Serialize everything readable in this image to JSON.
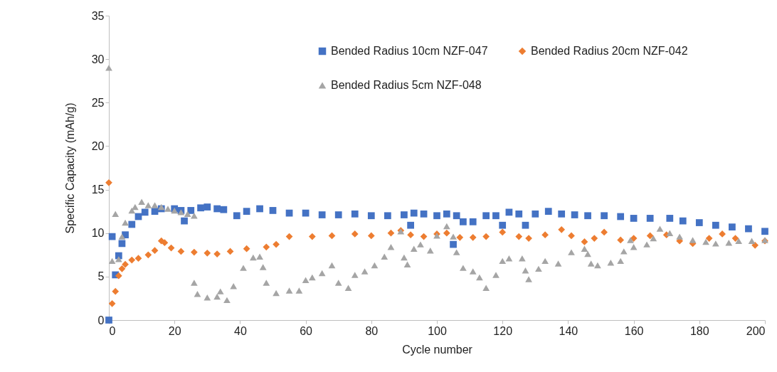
{
  "chart_data": {
    "type": "scatter",
    "xlabel": "Cycle number",
    "ylabel": "Specific Capacity (mAh/g)",
    "xlim": [
      0,
      200
    ],
    "xticks": [
      0,
      20,
      40,
      60,
      80,
      100,
      120,
      140,
      160,
      180,
      200
    ],
    "ylim": [
      0,
      35
    ],
    "yticks": [
      0,
      5,
      10,
      15,
      20,
      25,
      30,
      35
    ],
    "grid": false,
    "legend": "top right",
    "series": [
      {
        "name": "Bended Radius 10cm NZF-047",
        "color": "#4472c4",
        "marker": "square",
        "x": [
          0,
          1,
          2,
          3,
          4,
          5,
          7,
          9,
          11,
          14,
          16,
          20,
          22,
          23,
          25,
          28,
          30,
          33,
          35,
          39,
          42,
          46,
          50,
          55,
          60,
          65,
          70,
          75,
          80,
          85,
          90,
          92,
          93,
          96,
          100,
          103,
          105,
          106,
          108,
          111,
          115,
          118,
          120,
          122,
          125,
          127,
          130,
          134,
          138,
          142,
          146,
          151,
          156,
          160,
          165,
          171,
          175,
          180,
          185,
          190,
          195,
          200
        ],
        "values": [
          0,
          9.6,
          5.2,
          7.4,
          8.8,
          9.8,
          11.0,
          11.9,
          12.4,
          12.5,
          12.8,
          12.8,
          12.6,
          11.4,
          12.6,
          12.9,
          13.0,
          12.8,
          12.7,
          12.0,
          12.5,
          12.8,
          12.6,
          12.3,
          12.3,
          12.1,
          12.1,
          12.2,
          12.0,
          12.0,
          12.1,
          10.9,
          12.3,
          12.2,
          12.0,
          12.2,
          8.7,
          12.0,
          11.3,
          11.3,
          12.0,
          12.0,
          10.9,
          12.4,
          12.2,
          10.9,
          12.2,
          12.5,
          12.2,
          12.1,
          12.0,
          12.0,
          11.9,
          11.7,
          11.7,
          11.7,
          11.4,
          11.2,
          10.9,
          10.7,
          10.5,
          10.2
        ]
      },
      {
        "name": "Bended Radius 20cm NZF-042",
        "color": "#ed7d31",
        "marker": "diamond",
        "x": [
          0,
          1,
          2,
          3,
          4,
          5,
          7,
          9,
          12,
          14,
          16,
          17,
          19,
          22,
          26,
          30,
          33,
          37,
          42,
          48,
          51,
          55,
          62,
          68,
          75,
          80,
          86,
          89,
          92,
          96,
          100,
          103,
          107,
          111,
          115,
          120,
          125,
          128,
          133,
          138,
          141,
          145,
          148,
          151,
          156,
          160,
          165,
          170,
          174,
          178,
          183,
          187,
          191,
          197,
          200
        ],
        "values": [
          15.8,
          1.9,
          3.3,
          5.1,
          5.9,
          6.4,
          6.9,
          7.1,
          7.5,
          8.0,
          9.1,
          8.9,
          8.3,
          7.9,
          7.8,
          7.7,
          7.6,
          7.9,
          8.2,
          8.4,
          8.7,
          9.6,
          9.6,
          9.7,
          9.9,
          9.7,
          10.0,
          10.3,
          9.8,
          9.6,
          9.9,
          10.0,
          9.5,
          9.5,
          9.6,
          10.1,
          9.6,
          9.4,
          9.8,
          10.4,
          9.7,
          9.0,
          9.4,
          10.1,
          9.2,
          9.4,
          9.7,
          9.8,
          9.1,
          8.8,
          9.4,
          9.9,
          9.4,
          8.6,
          9.1
        ]
      },
      {
        "name": "Bended Radius 5cm NZF-048",
        "color": "#a5a5a5",
        "marker": "triangle",
        "x": [
          0,
          1,
          2,
          3,
          4,
          5,
          7,
          8,
          10,
          12,
          14,
          16,
          18,
          20,
          22,
          24,
          26,
          26,
          27,
          30,
          33,
          34,
          36,
          38,
          41,
          44,
          46,
          47,
          48,
          51,
          55,
          58,
          60,
          62,
          65,
          68,
          70,
          73,
          75,
          78,
          81,
          84,
          86,
          89,
          90,
          91,
          93,
          95,
          98,
          100,
          103,
          105,
          106,
          108,
          111,
          113,
          115,
          118,
          120,
          122,
          126,
          127,
          128,
          131,
          133,
          137,
          141,
          145,
          146,
          147,
          149,
          153,
          156,
          157,
          159,
          160,
          164,
          166,
          168,
          171,
          174,
          178,
          182,
          185,
          189,
          192,
          196,
          200
        ],
        "values": [
          29.0,
          6.8,
          12.2,
          7.0,
          9.6,
          11.2,
          12.6,
          13.0,
          13.6,
          13.2,
          13.2,
          13.0,
          12.8,
          12.6,
          12.4,
          12.2,
          12.0,
          4.3,
          3.0,
          2.6,
          2.7,
          3.3,
          2.3,
          3.9,
          6.0,
          7.2,
          7.3,
          6.1,
          4.3,
          3.1,
          3.4,
          3.4,
          4.6,
          4.9,
          5.4,
          6.3,
          4.3,
          3.7,
          5.2,
          5.6,
          6.3,
          7.3,
          8.4,
          10.2,
          7.2,
          6.4,
          8.2,
          8.7,
          8.0,
          9.7,
          10.8,
          9.6,
          7.8,
          6.0,
          5.6,
          4.9,
          3.7,
          5.2,
          6.8,
          7.1,
          7.1,
          5.7,
          4.7,
          5.9,
          6.8,
          6.5,
          7.8,
          8.2,
          7.6,
          6.5,
          6.3,
          6.6,
          6.8,
          7.9,
          9.2,
          8.4,
          8.7,
          9.4,
          10.5,
          10.0,
          9.6,
          9.2,
          9.0,
          8.8,
          8.9,
          9.1,
          9.1,
          9.2
        ]
      }
    ]
  }
}
